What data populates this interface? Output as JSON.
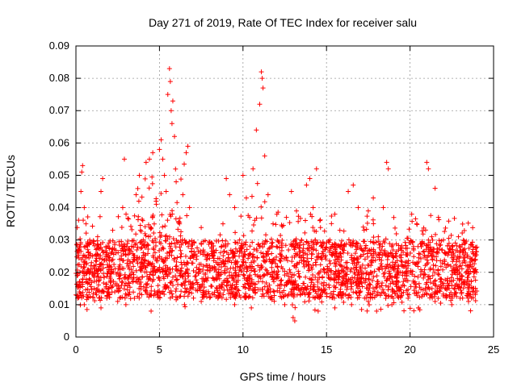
{
  "chart_data": {
    "type": "scatter",
    "title": "Day 271 of 2019, Rate Of TEC Index for receiver salu",
    "xlabel": "GPS time / hours",
    "ylabel": "ROTI / TECUs",
    "xlim": [
      0,
      25
    ],
    "ylim": [
      0,
      0.09
    ],
    "xticks": [
      0,
      5,
      10,
      15,
      20,
      25
    ],
    "yticks": [
      0,
      0.01,
      0.02,
      0.03,
      0.04,
      0.05,
      0.06,
      0.07,
      0.08,
      0.09
    ],
    "xtick_labels": [
      "0",
      "5",
      "10",
      "15",
      "20",
      "25"
    ],
    "ytick_labels": [
      "0",
      "0.01",
      "0.02",
      "0.03",
      "0.04",
      "0.05",
      "0.06",
      "0.07",
      "0.08",
      "0.09"
    ],
    "grid": true,
    "marker": "+",
    "color": "#ff0000",
    "series": [
      {
        "points": [
          [
            0.1,
            0.012
          ],
          [
            0.2,
            0.027
          ],
          [
            0.3,
            0.045
          ],
          [
            0.35,
            0.051
          ],
          [
            0.4,
            0.053
          ],
          [
            0.5,
            0.04
          ],
          [
            0.6,
            0.035
          ],
          [
            0.7,
            0.029
          ],
          [
            0.8,
            0.018
          ],
          [
            0.9,
            0.022
          ],
          [
            1.0,
            0.025
          ],
          [
            1.1,
            0.015
          ],
          [
            1.3,
            0.031
          ],
          [
            1.5,
            0.045
          ],
          [
            1.6,
            0.049
          ],
          [
            1.8,
            0.028
          ],
          [
            2.0,
            0.022
          ],
          [
            2.2,
            0.033
          ],
          [
            2.4,
            0.026
          ],
          [
            2.6,
            0.018
          ],
          [
            2.8,
            0.04
          ],
          [
            2.9,
            0.055
          ],
          [
            3.0,
            0.038
          ],
          [
            3.2,
            0.021
          ],
          [
            3.4,
            0.017
          ],
          [
            3.6,
            0.044
          ],
          [
            3.8,
            0.05
          ],
          [
            4.0,
            0.036
          ],
          [
            4.2,
            0.054
          ],
          [
            4.4,
            0.055
          ],
          [
            4.6,
            0.057
          ],
          [
            4.8,
            0.042
          ],
          [
            5.0,
            0.058
          ],
          [
            5.1,
            0.061
          ],
          [
            5.2,
            0.055
          ],
          [
            5.3,
            0.05
          ],
          [
            5.4,
            0.045
          ],
          [
            5.5,
            0.075
          ],
          [
            5.6,
            0.083
          ],
          [
            5.65,
            0.079
          ],
          [
            5.7,
            0.07
          ],
          [
            5.75,
            0.066
          ],
          [
            5.8,
            0.073
          ],
          [
            5.9,
            0.062
          ],
          [
            6.0,
            0.048
          ],
          [
            6.2,
            0.035
          ],
          [
            6.4,
            0.044
          ],
          [
            6.6,
            0.057
          ],
          [
            6.7,
            0.059
          ],
          [
            6.8,
            0.04
          ],
          [
            7.0,
            0.025
          ],
          [
            7.2,
            0.02
          ],
          [
            7.5,
            0.029
          ],
          [
            7.8,
            0.024
          ],
          [
            8.0,
            0.022
          ],
          [
            8.3,
            0.026
          ],
          [
            8.6,
            0.018
          ],
          [
            8.8,
            0.035
          ],
          [
            9.0,
            0.049
          ],
          [
            9.2,
            0.044
          ],
          [
            9.5,
            0.04
          ],
          [
            9.8,
            0.03
          ],
          [
            10.0,
            0.05
          ],
          [
            10.2,
            0.043
          ],
          [
            10.4,
            0.037
          ],
          [
            10.6,
            0.052
          ],
          [
            10.8,
            0.064
          ],
          [
            11.0,
            0.072
          ],
          [
            11.1,
            0.082
          ],
          [
            11.15,
            0.08
          ],
          [
            11.2,
            0.077
          ],
          [
            11.3,
            0.056
          ],
          [
            11.5,
            0.044
          ],
          [
            11.8,
            0.035
          ],
          [
            12.0,
            0.028
          ],
          [
            12.3,
            0.025
          ],
          [
            12.6,
            0.037
          ],
          [
            12.9,
            0.045
          ],
          [
            13.2,
            0.039
          ],
          [
            13.5,
            0.03
          ],
          [
            13.8,
            0.047
          ],
          [
            14.0,
            0.049
          ],
          [
            14.2,
            0.04
          ],
          [
            14.4,
            0.052
          ],
          [
            14.6,
            0.036
          ],
          [
            14.9,
            0.027
          ],
          [
            15.2,
            0.03
          ],
          [
            15.5,
            0.038
          ],
          [
            15.8,
            0.033
          ],
          [
            16.0,
            0.026
          ],
          [
            16.3,
            0.045
          ],
          [
            16.6,
            0.047
          ],
          [
            16.9,
            0.04
          ],
          [
            17.2,
            0.034
          ],
          [
            17.5,
            0.039
          ],
          [
            17.8,
            0.043
          ],
          [
            18.1,
            0.031
          ],
          [
            18.4,
            0.04
          ],
          [
            18.6,
            0.054
          ],
          [
            18.7,
            0.052
          ],
          [
            18.9,
            0.028
          ],
          [
            19.2,
            0.025
          ],
          [
            19.5,
            0.022
          ],
          [
            19.8,
            0.019
          ],
          [
            20.1,
            0.038
          ],
          [
            20.4,
            0.035
          ],
          [
            20.7,
            0.029
          ],
          [
            21.0,
            0.054
          ],
          [
            21.1,
            0.052
          ],
          [
            21.3,
            0.031
          ],
          [
            21.5,
            0.046
          ],
          [
            21.7,
            0.037
          ],
          [
            22.0,
            0.03
          ],
          [
            22.3,
            0.026
          ],
          [
            22.6,
            0.024
          ],
          [
            22.9,
            0.031
          ],
          [
            23.2,
            0.027
          ],
          [
            23.5,
            0.022
          ],
          [
            23.8,
            0.02
          ],
          [
            23.9,
            0.025
          ],
          [
            0.5,
            0.01
          ],
          [
            1.5,
            0.009
          ],
          [
            2.5,
            0.011
          ],
          [
            3.5,
            0.012
          ],
          [
            4.5,
            0.008
          ],
          [
            6.5,
            0.01
          ],
          [
            7.5,
            0.011
          ],
          [
            8.5,
            0.012
          ],
          [
            9.5,
            0.01
          ],
          [
            10.5,
            0.009
          ],
          [
            12.5,
            0.01
          ],
          [
            13.0,
            0.006
          ],
          [
            13.1,
            0.005
          ],
          [
            14.5,
            0.008
          ],
          [
            15.5,
            0.009
          ],
          [
            16.5,
            0.01
          ],
          [
            17.5,
            0.011
          ],
          [
            18.0,
            0.008
          ],
          [
            19.0,
            0.012
          ],
          [
            20.5,
            0.009
          ],
          [
            21.5,
            0.011
          ],
          [
            22.5,
            0.01
          ],
          [
            23.0,
            0.012
          ],
          [
            23.5,
            0.011
          ]
        ]
      }
    ],
    "dense_band": {
      "x_range": [
        0,
        24
      ],
      "y_min": 0.012,
      "y_max": 0.03,
      "note_points": 2600
    }
  }
}
